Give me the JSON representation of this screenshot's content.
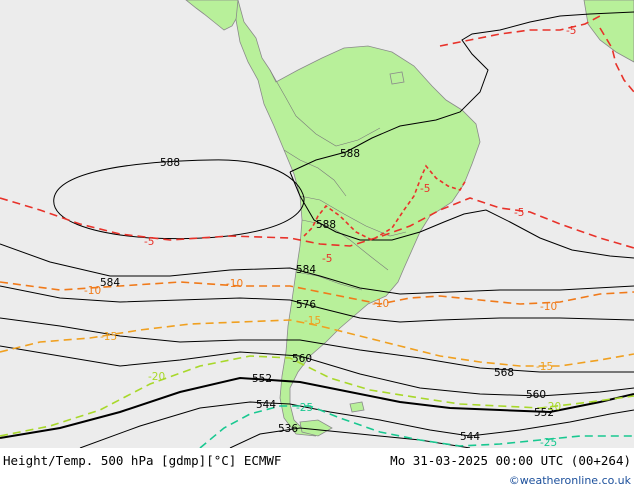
{
  "footer": {
    "title": "Height/Temp. 500 hPa [gdmp][°C] ECMWF",
    "datetime": "Mo 31-03-2025 00:00 UTC (00+264)",
    "credit": "©weatheronline.co.uk"
  },
  "colors": {
    "ocean": "#ececec",
    "land": "#b8f09a",
    "height_contour": "#000000",
    "temp_minus5": "#e8322a",
    "temp_minus10": "#f07a1a",
    "temp_minus15": "#f0a020",
    "temp_minus20": "#a8d82a",
    "temp_minus25": "#18c890"
  },
  "height_labels": [
    "588",
    "588",
    "588",
    "584",
    "584",
    "576",
    "568",
    "560",
    "560",
    "552",
    "552",
    "544",
    "544",
    "536"
  ],
  "temp_labels": [
    "-5",
    "-5",
    "-5",
    "-5",
    "-5",
    "-10",
    "-10",
    "-10",
    "-10",
    "-15",
    "-15",
    "-15",
    "-20",
    "-20",
    "-25",
    "-25"
  ]
}
